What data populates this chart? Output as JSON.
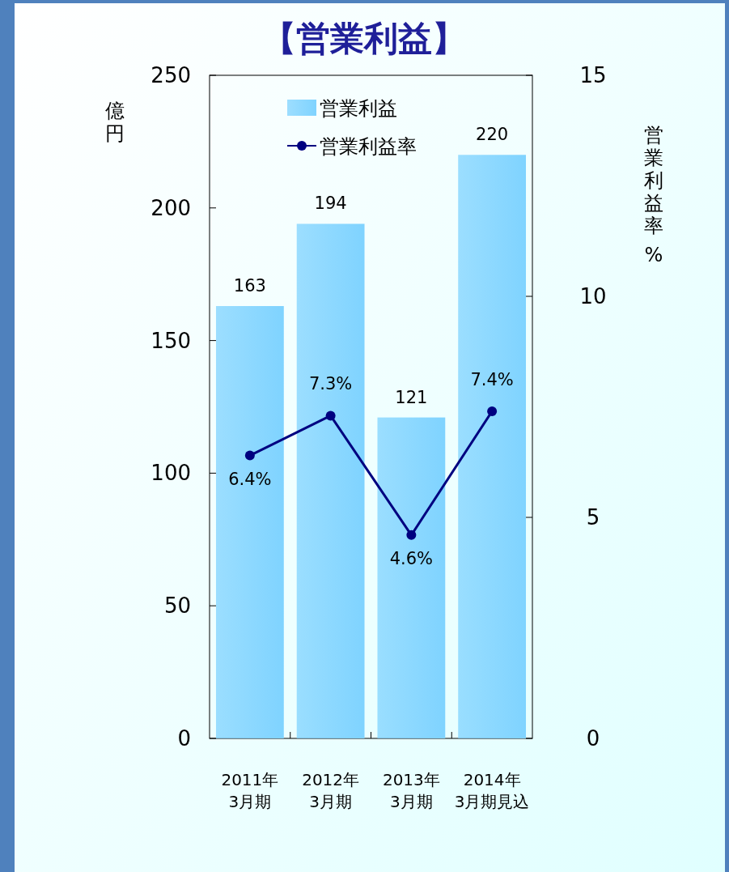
{
  "chart_data": {
    "type": "bar",
    "title": "【営業利益】",
    "ylabel": "億円",
    "y2label": "営業利益率 %",
    "categories": [
      "2011年\n3月期",
      "2012年\n3月期",
      "2013年\n3月期",
      "2014年\n3月期見込"
    ],
    "series": [
      {
        "name": "営業利益",
        "color": "#7fd3ff",
        "values": [
          163,
          194,
          121,
          220
        ],
        "value_labels": [
          "163",
          "194",
          "121",
          "220"
        ]
      },
      {
        "name": "営業利益率",
        "type": "line",
        "axis": "y2",
        "color": "#000080",
        "values": [
          6.4,
          7.3,
          4.6,
          7.4
        ],
        "value_labels": [
          "6.4%",
          "7.3%",
          "4.6%",
          "7.4%"
        ]
      }
    ],
    "ylim": [
      0,
      250
    ],
    "yticks": [
      0,
      50,
      100,
      150,
      200,
      250
    ],
    "y2lim": [
      0,
      15
    ],
    "y2ticks": [
      0,
      5,
      10,
      15
    ],
    "grid": false,
    "legend": "top",
    "marker": "circle",
    "line_style": "solid"
  }
}
